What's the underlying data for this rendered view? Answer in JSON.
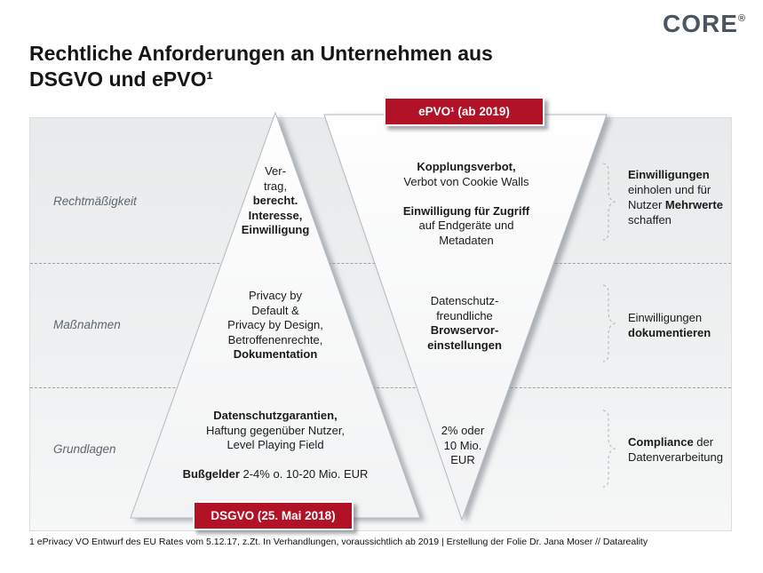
{
  "logo": {
    "text": "CORE",
    "mark": "®"
  },
  "title": {
    "line1": "Rechtliche Anforderungen an Unternehmen aus",
    "line2": "DSGVO und ePVO¹"
  },
  "diagram": {
    "epvo_badge": "ePVO¹ (ab 2019)",
    "dsgvo_badge": "DSGVO (25. Mai 2018)",
    "rows": [
      {
        "label": "Rechtmäßigkeit",
        "dsgvo": [
          "Ver-",
          "trag,",
          "**berecht.**",
          "**Interesse,**",
          "**Einwilligung**"
        ],
        "epvo": [
          "**Kopplungsverbot,**",
          "Verbot von Cookie Walls",
          "",
          "**Einwilligung für Zugriff**",
          "auf Endgeräte und",
          "Metadaten"
        ],
        "annotation": [
          "**Einwilligungen**",
          "einholen und für",
          "Nutzer **Mehrwerte**",
          "schaffen"
        ]
      },
      {
        "label": "Maßnahmen",
        "dsgvo": [
          "Privacy by",
          "Default &",
          "Privacy by Design,",
          "Betroffenenrechte,",
          "**Dokumentation**"
        ],
        "epvo": [
          "Datenschutz-",
          "freundliche",
          "**Browservor-**",
          "**einstellungen**"
        ],
        "annotation": [
          "Einwilligungen",
          "**dokumentieren**"
        ]
      },
      {
        "label": "Grundlagen",
        "dsgvo": [
          "**Datenschutzgarantien,**",
          "Haftung gegenüber Nutzer,",
          "Level Playing Field",
          "",
          "**Bußgelder** 2-4% o. 10-20 Mio. EUR"
        ],
        "epvo": [
          "2% oder",
          "10 Mio.",
          "EUR"
        ],
        "annotation": [
          "**Compliance** der",
          "Datenverarbeitung"
        ]
      }
    ]
  },
  "footnote": "1 ePrivacy VO Entwurf  des EU Rates vom 5.12.17, z.Zt. In Verhandlungen, voraussichtlich ab 2019 | Erstellung der Folie Dr. Jana Moser // Datareality",
  "colors": {
    "accent_red": "#b11226",
    "logo_gray": "#4a5560",
    "label_gray": "#5d6771"
  }
}
